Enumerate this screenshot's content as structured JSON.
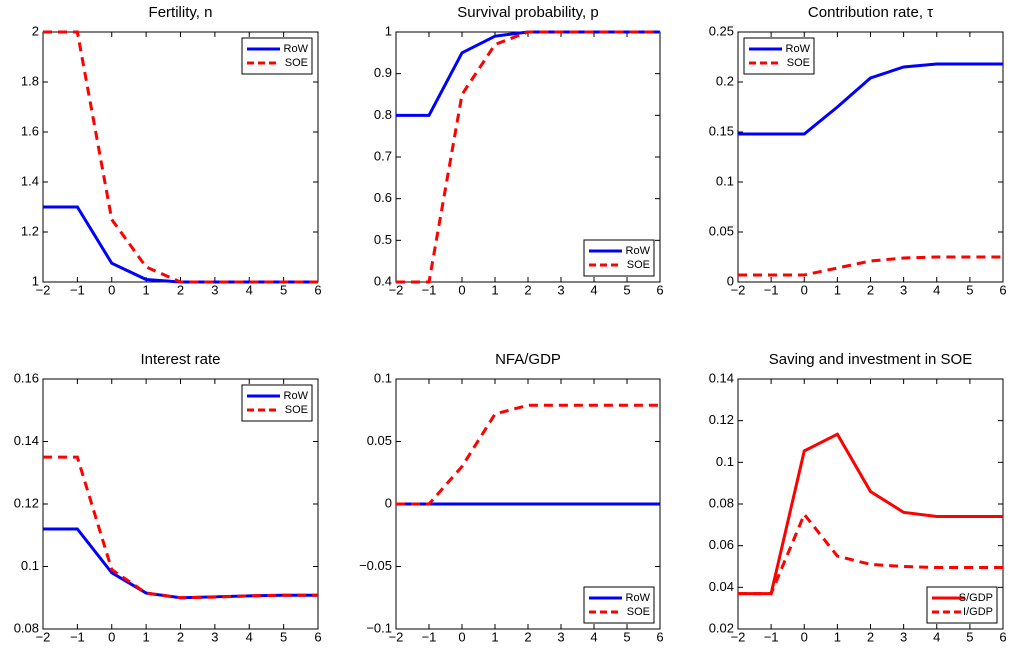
{
  "chart_data": [
    {
      "type": "line",
      "title": "Fertility, n",
      "x": [
        -2,
        -1,
        0,
        1,
        2,
        3,
        4,
        5,
        6
      ],
      "xlim": [
        -2,
        6
      ],
      "xticks": [
        {
          "value": -2,
          "label": "−2"
        },
        {
          "value": -1,
          "label": "−1"
        },
        0,
        1,
        2,
        3,
        4,
        5,
        6
      ],
      "ylim": [
        1,
        2
      ],
      "yticks": [
        1,
        1.2,
        1.4,
        1.6,
        1.8,
        2
      ],
      "legend": "upper-right",
      "series": [
        {
          "name": "RoW",
          "color": "#0000ff",
          "linestyle": "solid",
          "values": [
            1.3,
            1.3,
            1.075,
            1.01,
            1.0,
            1.0,
            1.0,
            1.0,
            1.0
          ]
        },
        {
          "name": "SOE",
          "color": "#ff0000",
          "linestyle": "dashed",
          "values": [
            2,
            2,
            1.25,
            1.06,
            1.0,
            1.0,
            1.0,
            1.0,
            1.0
          ]
        }
      ]
    },
    {
      "type": "line",
      "title": "Survival probability, p",
      "x": [
        -2,
        -1,
        0,
        1,
        2,
        3,
        4,
        5,
        6
      ],
      "xlim": [
        -2,
        6
      ],
      "xticks": [
        {
          "value": -2,
          "label": "−2"
        },
        {
          "value": -1,
          "label": "−1"
        },
        0,
        1,
        2,
        3,
        4,
        5,
        6
      ],
      "ylim": [
        0.4,
        1
      ],
      "yticks": [
        0.4,
        0.5,
        0.6,
        0.7,
        0.8,
        0.9,
        1
      ],
      "legend": "lower-right",
      "series": [
        {
          "name": "RoW",
          "color": "#0000ff",
          "linestyle": "solid",
          "values": [
            0.8,
            0.8,
            0.95,
            0.99,
            1,
            1,
            1,
            1,
            1
          ]
        },
        {
          "name": "SOE",
          "color": "#ff0000",
          "linestyle": "dashed",
          "values": [
            0.4,
            0.4,
            0.85,
            0.97,
            1,
            1,
            1,
            1,
            1
          ]
        }
      ]
    },
    {
      "type": "line",
      "title": "Contribution rate, τ",
      "x": [
        -2,
        -1,
        0,
        1,
        2,
        3,
        4,
        5,
        6
      ],
      "xlim": [
        -2,
        6
      ],
      "xticks": [
        {
          "value": -2,
          "label": "−2"
        },
        {
          "value": -1,
          "label": "−1"
        },
        0,
        1,
        2,
        3,
        4,
        5,
        6
      ],
      "ylim": [
        0,
        0.25
      ],
      "yticks": [
        0,
        0.05,
        0.1,
        0.15,
        0.2,
        0.25
      ],
      "legend": "upper-left",
      "series": [
        {
          "name": "RoW",
          "color": "#0000ff",
          "linestyle": "solid",
          "values": [
            0.148,
            0.148,
            0.148,
            0.175,
            0.204,
            0.215,
            0.218,
            0.218,
            0.218
          ]
        },
        {
          "name": "SOE",
          "color": "#ff0000",
          "linestyle": "dashed",
          "values": [
            0.007,
            0.007,
            0.007,
            0.014,
            0.021,
            0.024,
            0.025,
            0.025,
            0.025
          ]
        }
      ]
    },
    {
      "type": "line",
      "title": "Interest rate",
      "x": [
        -2,
        -1,
        0,
        1,
        2,
        3,
        4,
        5,
        6
      ],
      "xlim": [
        -2,
        6
      ],
      "xticks": [
        {
          "value": -2,
          "label": "−2"
        },
        {
          "value": -1,
          "label": "−1"
        },
        0,
        1,
        2,
        3,
        4,
        5,
        6
      ],
      "ylim": [
        0.08,
        0.16
      ],
      "yticks": [
        0.08,
        0.1,
        0.12,
        0.14,
        0.16
      ],
      "legend": "upper-right",
      "series": [
        {
          "name": "RoW",
          "color": "#0000ff",
          "linestyle": "solid",
          "values": [
            0.112,
            0.112,
            0.098,
            0.0915,
            0.09,
            0.0903,
            0.0906,
            0.0908,
            0.0908
          ]
        },
        {
          "name": "SOE",
          "color": "#ff0000",
          "linestyle": "dashed",
          "values": [
            0.135,
            0.135,
            0.099,
            0.0915,
            0.09,
            0.0902,
            0.0906,
            0.0908,
            0.0908
          ]
        }
      ]
    },
    {
      "type": "line",
      "title": "NFA/GDP",
      "x": [
        -2,
        -1,
        0,
        1,
        2,
        3,
        4,
        5,
        6
      ],
      "xlim": [
        -2,
        6
      ],
      "xticks": [
        {
          "value": -2,
          "label": "−2"
        },
        {
          "value": -1,
          "label": "−1"
        },
        0,
        1,
        2,
        3,
        4,
        5,
        6
      ],
      "ylim": [
        -0.1,
        0.1
      ],
      "yticks": [
        {
          "value": -0.1,
          "label": "−0.1"
        },
        {
          "value": -0.05,
          "label": "−0.05"
        },
        0,
        0.05,
        0.1
      ],
      "legend": "lower-right",
      "series": [
        {
          "name": "RoW",
          "color": "#0000ff",
          "linestyle": "solid",
          "values": [
            0,
            0,
            0,
            0,
            0,
            0,
            0,
            0,
            0
          ]
        },
        {
          "name": "SOE",
          "color": "#ff0000",
          "linestyle": "dashed",
          "values": [
            0,
            0,
            0.03,
            0.072,
            0.079,
            0.079,
            0.079,
            0.079,
            0.079
          ]
        }
      ]
    },
    {
      "type": "line",
      "title": "Saving and investment in SOE",
      "x": [
        -2,
        -1,
        0,
        1,
        2,
        3,
        4,
        5,
        6
      ],
      "xlim": [
        -2,
        6
      ],
      "xticks": [
        {
          "value": -2,
          "label": "−2"
        },
        {
          "value": -1,
          "label": "−1"
        },
        0,
        1,
        2,
        3,
        4,
        5,
        6
      ],
      "ylim": [
        0.02,
        0.14
      ],
      "yticks": [
        0.02,
        0.04,
        0.06,
        0.08,
        0.1,
        0.12,
        0.14
      ],
      "legend": "lower-right",
      "series": [
        {
          "name": "S/GDP",
          "color": "#ff0000",
          "linestyle": "solid",
          "values": [
            0.037,
            0.037,
            0.1055,
            0.1135,
            0.086,
            0.076,
            0.074,
            0.074,
            0.074
          ]
        },
        {
          "name": "I/GDP",
          "color": "#ff0000",
          "linestyle": "dashed",
          "values": [
            0.037,
            0.037,
            0.075,
            0.055,
            0.051,
            0.05,
            0.0495,
            0.0495,
            0.0495
          ]
        }
      ]
    }
  ]
}
